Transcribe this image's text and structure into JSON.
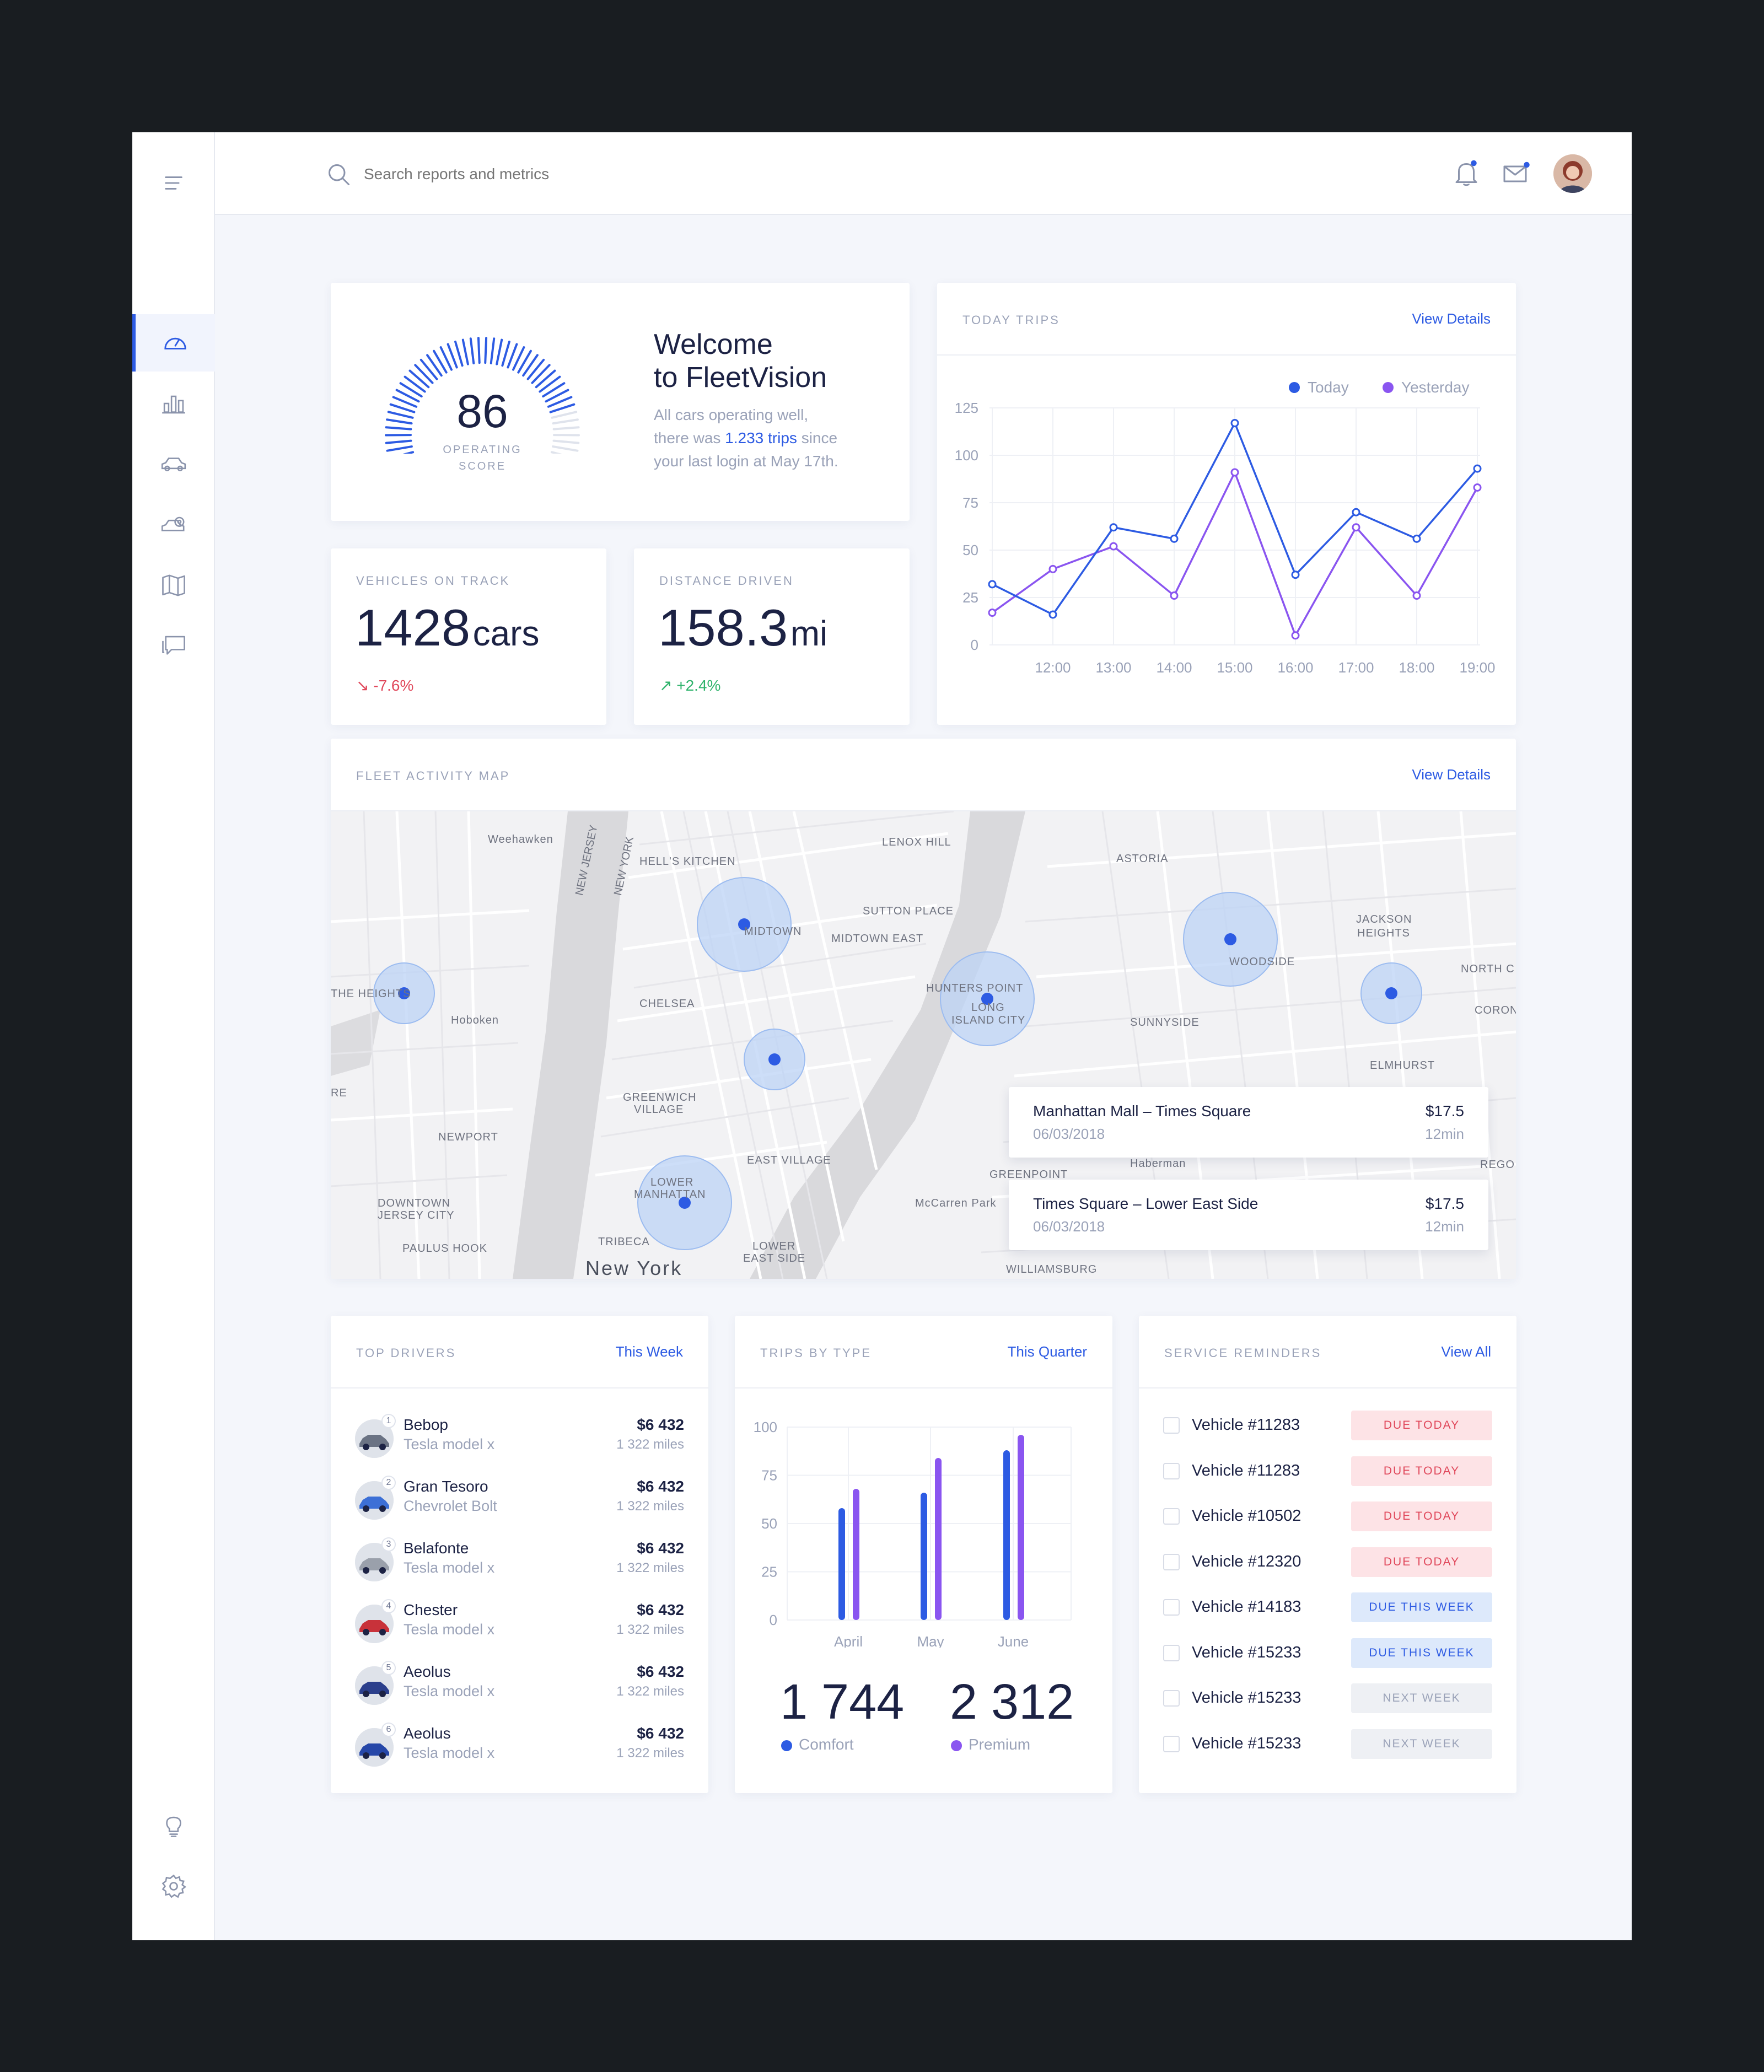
{
  "search": {
    "placeholder": "Search reports and metrics"
  },
  "welcome": {
    "score": "86",
    "score_label_1": "OPERATING",
    "score_label_2": "SCORE",
    "title_1": "Welcome",
    "title_2": "to FleetVision",
    "body_1": "All cars operating well,",
    "body_2_pre": "there was ",
    "body_2_link": "1.233 trips",
    "body_2_post": " since",
    "body_3": "your last login at May 17th."
  },
  "stats": {
    "vehicles": {
      "label": "VEHICLES ON TRACK",
      "value": "1428",
      "unit": "cars",
      "change": "-7.6%",
      "arrow": "↘"
    },
    "distance": {
      "label": "DISTANCE DRIVEN",
      "value": "158.3",
      "unit": "mi",
      "change": "+2.4%",
      "arrow": "↗"
    }
  },
  "today_trips": {
    "title": "TODAY TRIPS",
    "link": "View Details"
  },
  "map": {
    "title": "FLEET ACTIVITY MAP",
    "link": "View Details",
    "labels": {
      "weehawken": "Weehawken",
      "hells_kitchen": "HELL'S KITCHEN",
      "lenox_hill": "LENOX HILL",
      "astoria": "ASTORIA",
      "midtown": "MIDTOWN",
      "sutton_place": "SUTTON PLACE",
      "midtown_east": "MIDTOWN EAST",
      "jackson_heights_1": "JACKSON",
      "jackson_heights_2": "HEIGHTS",
      "the_heights": "THE HEIGHTS",
      "hoboken": "Hoboken",
      "chelsea": "CHELSEA",
      "hunters_point": "HUNTERS POINT",
      "long_island_city_1": "LONG",
      "long_island_city_2": "ISLAND CITY",
      "woodside": "WOODSIDE",
      "sunnyside": "SUNNYSIDE",
      "north_c": "NORTH C",
      "corona": "CORON",
      "elmhurst": "ELMHURST",
      "greenwich_1": "GREENWICH",
      "greenwich_2": "VILLAGE",
      "newport": "NEWPORT",
      "east_village": "EAST VILLAGE",
      "greenpoint": "GREENPOINT",
      "lower_manhattan_1": "LOWER",
      "lower_manhattan_2": "MANHATTAN",
      "downtown_jc_1": "DOWNTOWN",
      "downtown_jc_2": "JERSEY CITY",
      "tribeca": "TRIBECA",
      "lower_east_1": "LOWER",
      "lower_east_2": "EAST SIDE",
      "paulus_hook": "PAULUS HOOK",
      "new_york": "New York",
      "mccarren": "McCarren Park",
      "haberman": "Haberman",
      "rego": "REGO P",
      "new_jersey_1": "NEW JERSEY",
      "new_york_state": "NEW YORK",
      "re": "RE",
      "williamsburg": "WILLIAMSBURG"
    },
    "trips": [
      {
        "route": "Manhattan Mall – Times Square",
        "date": "06/03/2018",
        "price": "$17.5",
        "duration": "12min"
      },
      {
        "route": "Times Square – Lower East Side",
        "date": "06/03/2018",
        "price": "$17.5",
        "duration": "12min"
      }
    ]
  },
  "top_drivers": {
    "title": "TOP DRIVERS",
    "link": "This Week",
    "rows": [
      {
        "rank": "1",
        "name": "Bebop",
        "car": "Tesla model x",
        "amount": "$6 432",
        "miles": "1 322 miles"
      },
      {
        "rank": "2",
        "name": "Gran Tesoro",
        "car": "Chevrolet Bolt",
        "amount": "$6 432",
        "miles": "1 322 miles"
      },
      {
        "rank": "3",
        "name": "Belafonte",
        "car": "Tesla model x",
        "amount": "$6 432",
        "miles": "1 322 miles"
      },
      {
        "rank": "4",
        "name": "Chester",
        "car": "Tesla model x",
        "amount": "$6 432",
        "miles": "1 322 miles"
      },
      {
        "rank": "5",
        "name": "Aeolus",
        "car": "Tesla model x",
        "amount": "$6 432",
        "miles": "1 322 miles"
      },
      {
        "rank": "6",
        "name": "Aeolus",
        "car": "Tesla model x",
        "amount": "$6 432",
        "miles": "1 322 miles"
      }
    ]
  },
  "trips_by_type": {
    "title": "TRIPS BY TYPE",
    "link": "This Quarter",
    "comfort_total": "1 744",
    "comfort_label": "Comfort",
    "premium_total": "2 312",
    "premium_label": "Premium"
  },
  "service": {
    "title": "SERVICE REMINDERS",
    "link": "View All",
    "rows": [
      {
        "vehicle": "Vehicle #11283",
        "status": "DUE TODAY",
        "kind": "red"
      },
      {
        "vehicle": "Vehicle #11283",
        "status": "DUE TODAY",
        "kind": "red"
      },
      {
        "vehicle": "Vehicle #10502",
        "status": "DUE TODAY",
        "kind": "red"
      },
      {
        "vehicle": "Vehicle #12320",
        "status": "DUE TODAY",
        "kind": "red"
      },
      {
        "vehicle": "Vehicle #14183",
        "status": "DUE THIS WEEK",
        "kind": "blue"
      },
      {
        "vehicle": "Vehicle #15233",
        "status": "DUE THIS WEEK",
        "kind": "blue"
      },
      {
        "vehicle": "Vehicle #15233",
        "status": "NEXT WEEK",
        "kind": "gray"
      },
      {
        "vehicle": "Vehicle #15233",
        "status": "NEXT WEEK",
        "kind": "gray"
      }
    ]
  },
  "colors": {
    "blue": "#2d5be3",
    "purple": "#8a55f0",
    "red": "#e0475a",
    "green": "#2fb36c"
  },
  "chart_data": [
    {
      "type": "line",
      "x": [
        "11:00",
        "12:00",
        "13:00",
        "14:00",
        "15:00",
        "16:00",
        "17:00",
        "18:00",
        "19:00"
      ],
      "x_ticks": [
        "12:00",
        "13:00",
        "14:00",
        "15:00",
        "16:00",
        "17:00",
        "18:00",
        "19:00"
      ],
      "y_ticks": [
        0,
        25,
        50,
        75,
        100,
        125
      ],
      "ylim": [
        0,
        125
      ],
      "grid": true,
      "legend": "top-right",
      "series": [
        {
          "name": "Today",
          "color": "#2d5be3",
          "values": [
            32,
            16,
            62,
            56,
            117,
            37,
            70,
            56,
            93
          ]
        },
        {
          "name": "Yesterday",
          "color": "#8a55f0",
          "values": [
            17,
            40,
            52,
            26,
            91,
            5,
            62,
            26,
            83
          ]
        }
      ]
    },
    {
      "type": "bar",
      "categories": [
        "April",
        "May",
        "June"
      ],
      "y_ticks": [
        0,
        25,
        50,
        75,
        100
      ],
      "ylim": [
        0,
        100
      ],
      "grid": true,
      "series": [
        {
          "name": "Comfort",
          "color": "#2d5be3",
          "values": [
            58,
            66,
            88
          ]
        },
        {
          "name": "Premium",
          "color": "#8a55f0",
          "values": [
            68,
            84,
            96
          ]
        }
      ]
    }
  ]
}
